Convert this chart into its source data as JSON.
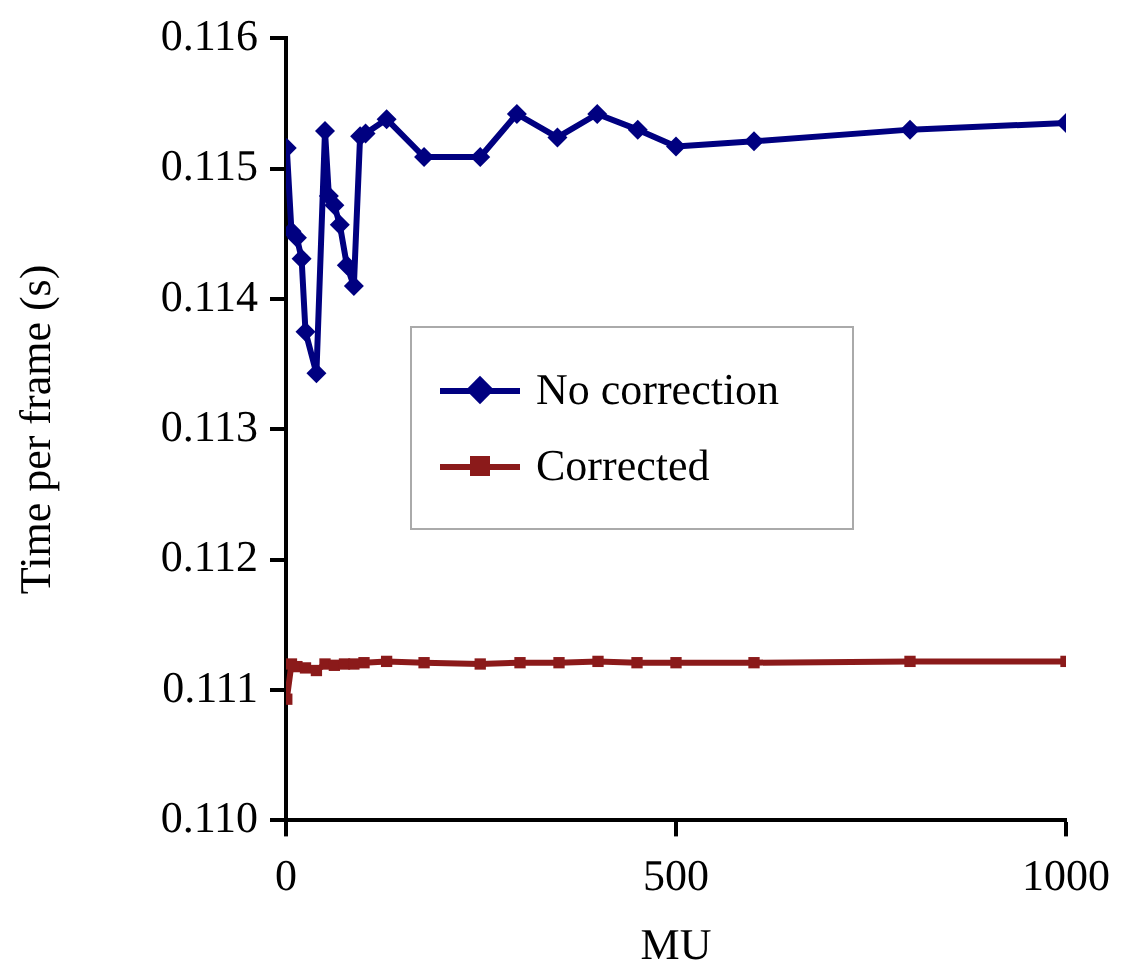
{
  "chart_data": {
    "type": "line",
    "xlabel": "MU",
    "ylabel": "Time per frame (s)",
    "xlim": [
      0,
      1000
    ],
    "xticks": [
      0,
      500,
      1000
    ],
    "ylim": [
      0.11,
      0.116
    ],
    "yticks": [
      {
        "value": 0.11,
        "label": "0.110"
      },
      {
        "value": 0.111,
        "label": "0.111"
      },
      {
        "value": 0.112,
        "label": "0.112"
      },
      {
        "value": 0.113,
        "label": "0.113"
      },
      {
        "value": 0.114,
        "label": "0.114"
      },
      {
        "value": 0.115,
        "label": "0.115"
      },
      {
        "value": 0.116,
        "label": "0.116"
      }
    ],
    "grid": false,
    "legend": "center",
    "line_style": "solid",
    "series": [
      {
        "name": "No correction",
        "color": "#000080",
        "marker": "diamond",
        "x": [
          1,
          7,
          14,
          20,
          25,
          39,
          50,
          55,
          62,
          69,
          78,
          87,
          95,
          102,
          129,
          177,
          249,
          296,
          348,
          399,
          451,
          500,
          600,
          800,
          1000
        ],
        "values": [
          0.11516,
          0.11452,
          0.11447,
          0.11431,
          0.11375,
          0.11343,
          0.11529,
          0.11479,
          0.11472,
          0.11457,
          0.11426,
          0.1141,
          0.11525,
          0.11527,
          0.11538,
          0.11509,
          0.11509,
          0.11542,
          0.11524,
          0.11542,
          0.1153,
          0.11517,
          0.11521,
          0.1153,
          0.11535
        ]
      },
      {
        "name": "Corrected",
        "color": "#8b1a1a",
        "marker": "square",
        "x": [
          1,
          7,
          14,
          25,
          39,
          50,
          62,
          75,
          87,
          100,
          129,
          177,
          249,
          300,
          350,
          400,
          450,
          500,
          600,
          800,
          1000
        ],
        "values": [
          0.11093,
          0.1112,
          0.11118,
          0.11117,
          0.11115,
          0.1112,
          0.11119,
          0.1112,
          0.1112,
          0.11121,
          0.11122,
          0.11121,
          0.1112,
          0.11121,
          0.11121,
          0.11122,
          0.11121,
          0.11121,
          0.11121,
          0.11122,
          0.11122
        ]
      }
    ]
  }
}
